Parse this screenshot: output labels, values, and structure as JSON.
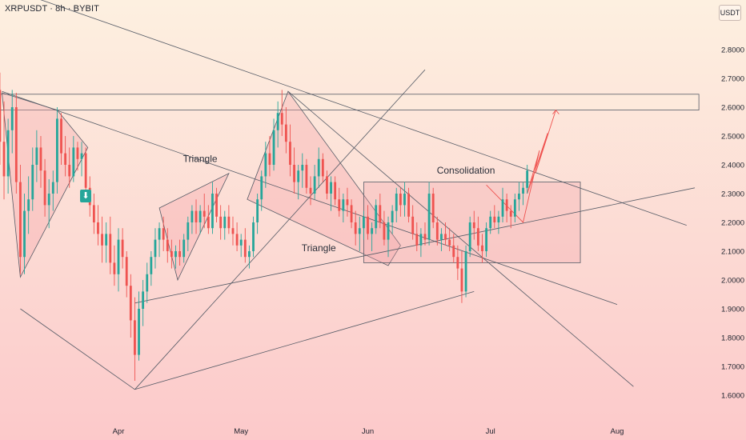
{
  "header": {
    "ticker_line": "XRPUSDT · 8h · BYBIT",
    "currency_badge": "USDT"
  },
  "colors": {
    "background_top": "#fdf0e0",
    "background_bottom": "#fcc9ca",
    "candle_up": "#26a69a",
    "candle_down": "#ef5350",
    "trendline": "#555b66",
    "zone_fill": "#f3a3a8"
  },
  "signal_marker": {
    "icon": "down-arrow-icon",
    "glyph": "⬇"
  },
  "chart_data": {
    "type": "candlestick",
    "symbol": "XRPUSDT",
    "timeframe": "8h",
    "exchange": "BYBIT",
    "y_axis": {
      "ticks": [
        "2.8000",
        "2.7000",
        "2.6000",
        "2.5000",
        "2.4000",
        "2.3000",
        "2.2000",
        "2.1000",
        "2.0000",
        "1.9000",
        "1.8000",
        "1.7000",
        "1.6000"
      ],
      "tick_values": [
        2.8,
        2.7,
        2.6,
        2.5,
        2.4,
        2.3,
        2.2,
        2.1,
        2.0,
        1.9,
        1.8,
        1.7,
        1.6
      ],
      "range": [
        1.54,
        2.95
      ]
    },
    "x_axis": {
      "tick_labels": [
        "Apr",
        "May",
        "Jun",
        "Jul",
        "Aug"
      ],
      "tick_days": [
        31,
        61,
        92,
        122,
        153
      ],
      "range_days": [
        2,
        160
      ]
    },
    "annotations": [
      {
        "text": "Triangle",
        "day": 51,
        "price": 2.41
      },
      {
        "text": "Triangle",
        "day": 80,
        "price": 2.1
      },
      {
        "text": "Consolidation",
        "day": 116,
        "price": 2.37
      }
    ],
    "resistance_zone": {
      "price_low": 2.59,
      "price_high": 2.645,
      "day_start": 2,
      "day_end": 173
    },
    "consolidation_box": {
      "price_low": 2.06,
      "price_high": 2.34,
      "day_start": 91,
      "day_end": 144
    },
    "trendlines": [
      {
        "points": [
          [
            2.5,
            3.02
          ],
          [
            170,
            2.19
          ]
        ]
      },
      {
        "points": [
          [
            2.5,
            2.655
          ],
          [
            153,
            1.915
          ]
        ]
      },
      {
        "points": [
          [
            72.5,
            2.655
          ],
          [
            157,
            1.63
          ]
        ]
      },
      {
        "points": [
          [
            35,
            1.92
          ],
          [
            172,
            2.32
          ]
        ]
      },
      {
        "points": [
          [
            35,
            1.62
          ],
          [
            118,
            1.96
          ]
        ]
      },
      {
        "points": [
          [
            35,
            1.62
          ],
          [
            106,
            2.73
          ]
        ]
      },
      {
        "points": [
          [
            7,
            1.9
          ],
          [
            35,
            1.62
          ]
        ]
      }
    ],
    "shaded_triangles": [
      {
        "points": [
          [
            2.5,
            2.65
          ],
          [
            16,
            2.59
          ],
          [
            23.5,
            2.46
          ],
          [
            7,
            2.01
          ]
        ]
      },
      {
        "points": [
          [
            41,
            2.25
          ],
          [
            58,
            2.37
          ],
          [
            45.5,
            2.0
          ]
        ]
      },
      {
        "points": [
          [
            72.5,
            2.655
          ],
          [
            100,
            2.12
          ],
          [
            97,
            2.05
          ],
          [
            62.5,
            2.28
          ]
        ]
      }
    ],
    "projection_path": [
      [
        121,
        2.33
      ],
      [
        130,
        2.2
      ],
      [
        134,
        2.45
      ],
      [
        131,
        2.3
      ],
      [
        136,
        2.51
      ],
      [
        133,
        2.37
      ],
      [
        138,
        2.59
      ]
    ],
    "candles_ohlc": [
      [
        2,
        2.66,
        2.72,
        2.4,
        2.48
      ],
      [
        3,
        2.48,
        2.62,
        2.28,
        2.36
      ],
      [
        4,
        2.36,
        2.56,
        2.3,
        2.52
      ],
      [
        5,
        2.52,
        2.66,
        2.44,
        2.6
      ],
      [
        6,
        2.6,
        2.65,
        2.3,
        2.34
      ],
      [
        7,
        2.34,
        2.4,
        2.02,
        2.08
      ],
      [
        8,
        2.08,
        2.3,
        2.02,
        2.24
      ],
      [
        9,
        2.24,
        2.36,
        2.16,
        2.28
      ],
      [
        10,
        2.28,
        2.46,
        2.24,
        2.4
      ],
      [
        11,
        2.4,
        2.52,
        2.34,
        2.46
      ],
      [
        12,
        2.46,
        2.5,
        2.32,
        2.38
      ],
      [
        13,
        2.38,
        2.42,
        2.22,
        2.26
      ],
      [
        14,
        2.26,
        2.35,
        2.18,
        2.3
      ],
      [
        15,
        2.3,
        2.38,
        2.24,
        2.34
      ],
      [
        16,
        2.34,
        2.6,
        2.3,
        2.56
      ],
      [
        17,
        2.56,
        2.58,
        2.4,
        2.44
      ],
      [
        18,
        2.44,
        2.5,
        2.36,
        2.4
      ],
      [
        19,
        2.4,
        2.46,
        2.32,
        2.36
      ],
      [
        20,
        2.36,
        2.5,
        2.34,
        2.46
      ],
      [
        21,
        2.46,
        2.48,
        2.38,
        2.42
      ],
      [
        22,
        2.42,
        2.48,
        2.36,
        2.44
      ],
      [
        23,
        2.44,
        2.46,
        2.3,
        2.32
      ],
      [
        24,
        2.32,
        2.36,
        2.22,
        2.26
      ],
      [
        25,
        2.26,
        2.3,
        2.16,
        2.2
      ],
      [
        26,
        2.2,
        2.26,
        2.12,
        2.16
      ],
      [
        27,
        2.16,
        2.22,
        2.06,
        2.12
      ],
      [
        28,
        2.12,
        2.2,
        2.06,
        2.16
      ],
      [
        29,
        2.16,
        2.22,
        2.02,
        2.06
      ],
      [
        30,
        2.06,
        2.12,
        1.98,
        2.02
      ],
      [
        31,
        2.02,
        2.18,
        1.96,
        2.14
      ],
      [
        32,
        2.14,
        2.18,
        2.04,
        2.08
      ],
      [
        33,
        2.08,
        2.1,
        1.94,
        1.98
      ],
      [
        34,
        1.98,
        2.02,
        1.8,
        1.86
      ],
      [
        35,
        1.86,
        1.94,
        1.65,
        1.74
      ],
      [
        36,
        1.74,
        1.96,
        1.72,
        1.9
      ],
      [
        37,
        1.9,
        2.0,
        1.84,
        1.96
      ],
      [
        38,
        1.96,
        2.06,
        1.92,
        2.02
      ],
      [
        39,
        2.02,
        2.1,
        1.98,
        2.08
      ],
      [
        40,
        2.08,
        2.18,
        2.04,
        2.14
      ],
      [
        41,
        2.14,
        2.2,
        2.08,
        2.18
      ],
      [
        42,
        2.18,
        2.22,
        2.1,
        2.14
      ],
      [
        43,
        2.14,
        2.18,
        2.06,
        2.1
      ],
      [
        44,
        2.1,
        2.14,
        2.04,
        2.08
      ],
      [
        45,
        2.08,
        2.12,
        2.04,
        2.1
      ],
      [
        46,
        2.1,
        2.14,
        2.05,
        2.08
      ],
      [
        47,
        2.08,
        2.16,
        2.06,
        2.14
      ],
      [
        48,
        2.14,
        2.22,
        2.1,
        2.2
      ],
      [
        49,
        2.2,
        2.26,
        2.16,
        2.24
      ],
      [
        50,
        2.24,
        2.28,
        2.16,
        2.2
      ],
      [
        51,
        2.2,
        2.26,
        2.16,
        2.24
      ],
      [
        52,
        2.24,
        2.3,
        2.18,
        2.22
      ],
      [
        53,
        2.22,
        2.26,
        2.16,
        2.18
      ],
      [
        54,
        2.18,
        2.34,
        2.16,
        2.3
      ],
      [
        55,
        2.3,
        2.32,
        2.2,
        2.22
      ],
      [
        56,
        2.22,
        2.26,
        2.14,
        2.18
      ],
      [
        57,
        2.18,
        2.24,
        2.14,
        2.22
      ],
      [
        58,
        2.22,
        2.26,
        2.16,
        2.18
      ],
      [
        59,
        2.18,
        2.22,
        2.12,
        2.16
      ],
      [
        60,
        2.16,
        2.2,
        2.1,
        2.12
      ],
      [
        61,
        2.12,
        2.16,
        2.08,
        2.14
      ],
      [
        62,
        2.14,
        2.18,
        2.06,
        2.08
      ],
      [
        63,
        2.08,
        2.12,
        2.04,
        2.1
      ],
      [
        64,
        2.1,
        2.22,
        2.08,
        2.2
      ],
      [
        65,
        2.2,
        2.3,
        2.16,
        2.28
      ],
      [
        66,
        2.28,
        2.38,
        2.24,
        2.36
      ],
      [
        67,
        2.36,
        2.48,
        2.32,
        2.44
      ],
      [
        68,
        2.44,
        2.5,
        2.36,
        2.4
      ],
      [
        69,
        2.4,
        2.56,
        2.38,
        2.52
      ],
      [
        70,
        2.52,
        2.62,
        2.46,
        2.58
      ],
      [
        71,
        2.58,
        2.66,
        2.5,
        2.54
      ],
      [
        72,
        2.54,
        2.6,
        2.44,
        2.48
      ],
      [
        73,
        2.48,
        2.54,
        2.36,
        2.4
      ],
      [
        74,
        2.4,
        2.46,
        2.3,
        2.34
      ],
      [
        75,
        2.34,
        2.4,
        2.28,
        2.38
      ],
      [
        76,
        2.38,
        2.44,
        2.32,
        2.4
      ],
      [
        77,
        2.4,
        2.42,
        2.3,
        2.32
      ],
      [
        78,
        2.32,
        2.36,
        2.26,
        2.3
      ],
      [
        79,
        2.3,
        2.4,
        2.28,
        2.36
      ],
      [
        80,
        2.36,
        2.46,
        2.32,
        2.42
      ],
      [
        81,
        2.42,
        2.44,
        2.34,
        2.36
      ],
      [
        82,
        2.36,
        2.38,
        2.28,
        2.3
      ],
      [
        83,
        2.3,
        2.36,
        2.24,
        2.34
      ],
      [
        84,
        2.34,
        2.36,
        2.26,
        2.28
      ],
      [
        85,
        2.28,
        2.32,
        2.22,
        2.24
      ],
      [
        86,
        2.24,
        2.3,
        2.2,
        2.28
      ],
      [
        87,
        2.28,
        2.32,
        2.22,
        2.26
      ],
      [
        88,
        2.26,
        2.28,
        2.18,
        2.2
      ],
      [
        89,
        2.2,
        2.24,
        2.12,
        2.16
      ],
      [
        90,
        2.16,
        2.22,
        2.1,
        2.18
      ],
      [
        91,
        2.18,
        2.24,
        2.14,
        2.22
      ],
      [
        92,
        2.22,
        2.26,
        2.14,
        2.16
      ],
      [
        93,
        2.16,
        2.2,
        2.1,
        2.18
      ],
      [
        94,
        2.18,
        2.28,
        2.16,
        2.26
      ],
      [
        95,
        2.26,
        2.3,
        2.18,
        2.2
      ],
      [
        96,
        2.2,
        2.24,
        2.12,
        2.14
      ],
      [
        97,
        2.14,
        2.22,
        2.08,
        2.2
      ],
      [
        98,
        2.2,
        2.26,
        2.16,
        2.24
      ],
      [
        99,
        2.24,
        2.32,
        2.2,
        2.3
      ],
      [
        100,
        2.3,
        2.32,
        2.22,
        2.26
      ],
      [
        101,
        2.26,
        2.34,
        2.22,
        2.3
      ],
      [
        102,
        2.3,
        2.32,
        2.2,
        2.22
      ],
      [
        103,
        2.22,
        2.26,
        2.14,
        2.16
      ],
      [
        104,
        2.16,
        2.2,
        2.1,
        2.12
      ],
      [
        105,
        2.12,
        2.18,
        2.08,
        2.16
      ],
      [
        106,
        2.16,
        2.2,
        2.12,
        2.14
      ],
      [
        107,
        2.14,
        2.34,
        2.12,
        2.3
      ],
      [
        108,
        2.3,
        2.32,
        2.18,
        2.2
      ],
      [
        109,
        2.2,
        2.22,
        2.12,
        2.14
      ],
      [
        110,
        2.14,
        2.18,
        2.1,
        2.16
      ],
      [
        111,
        2.16,
        2.2,
        2.12,
        2.14
      ],
      [
        112,
        2.14,
        2.18,
        2.1,
        2.12
      ],
      [
        113,
        2.12,
        2.16,
        2.06,
        2.08
      ],
      [
        114,
        2.08,
        2.12,
        2.0,
        2.04
      ],
      [
        115,
        2.04,
        2.1,
        1.92,
        1.96
      ],
      [
        116,
        1.96,
        2.12,
        1.94,
        2.1
      ],
      [
        117,
        2.1,
        2.22,
        2.08,
        2.2
      ],
      [
        118,
        2.2,
        2.24,
        2.14,
        2.18
      ],
      [
        119,
        2.18,
        2.22,
        2.1,
        2.12
      ],
      [
        120,
        2.12,
        2.16,
        2.06,
        2.1
      ],
      [
        121,
        2.1,
        2.2,
        2.08,
        2.18
      ],
      [
        122,
        2.18,
        2.24,
        2.16,
        2.22
      ],
      [
        123,
        2.22,
        2.26,
        2.18,
        2.2
      ],
      [
        124,
        2.2,
        2.24,
        2.16,
        2.22
      ],
      [
        125,
        2.22,
        2.32,
        2.2,
        2.28
      ],
      [
        126,
        2.28,
        2.3,
        2.2,
        2.24
      ],
      [
        127,
        2.24,
        2.26,
        2.18,
        2.22
      ],
      [
        128,
        2.22,
        2.3,
        2.2,
        2.28
      ],
      [
        129,
        2.28,
        2.34,
        2.24,
        2.3
      ],
      [
        130,
        2.3,
        2.34,
        2.26,
        2.32
      ],
      [
        131,
        2.32,
        2.4,
        2.3,
        2.38
      ]
    ]
  }
}
